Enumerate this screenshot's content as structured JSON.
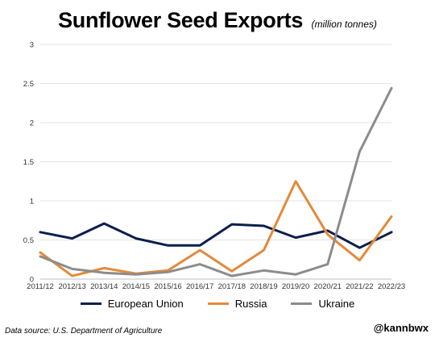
{
  "chart_data": {
    "type": "line",
    "title": "Sunflower Seed Exports",
    "subtitle": "(million tonnes)",
    "x": [
      "2011/12",
      "2012/13",
      "2013/14",
      "2014/15",
      "2015/16",
      "2016/17",
      "2017/18",
      "2018/19",
      "2019/20",
      "2020/21",
      "2021/22",
      "2022/23"
    ],
    "series": [
      {
        "name": "European Union",
        "color": "#0b1f4f",
        "values": [
          0.6,
          0.52,
          0.71,
          0.52,
          0.43,
          0.43,
          0.7,
          0.68,
          0.53,
          0.62,
          0.4,
          0.6
        ]
      },
      {
        "name": "Russia",
        "color": "#e38a3a",
        "values": [
          0.34,
          0.04,
          0.14,
          0.07,
          0.11,
          0.37,
          0.1,
          0.37,
          1.25,
          0.57,
          0.24,
          0.8
        ]
      },
      {
        "name": "Ukraine",
        "color": "#8c8c8c",
        "values": [
          0.29,
          0.13,
          0.08,
          0.06,
          0.09,
          0.19,
          0.04,
          0.11,
          0.06,
          0.19,
          1.63,
          2.44
        ]
      }
    ],
    "yticks": [
      "0",
      "0.5",
      "1",
      "1.5",
      "2",
      "2.5",
      "3"
    ],
    "ylim": [
      0,
      3
    ],
    "grid": "horizontal",
    "legend": "bottom"
  },
  "footer": {
    "source": "Data source: U.S. Department of Agriculture",
    "handle": "@kannbwx"
  }
}
